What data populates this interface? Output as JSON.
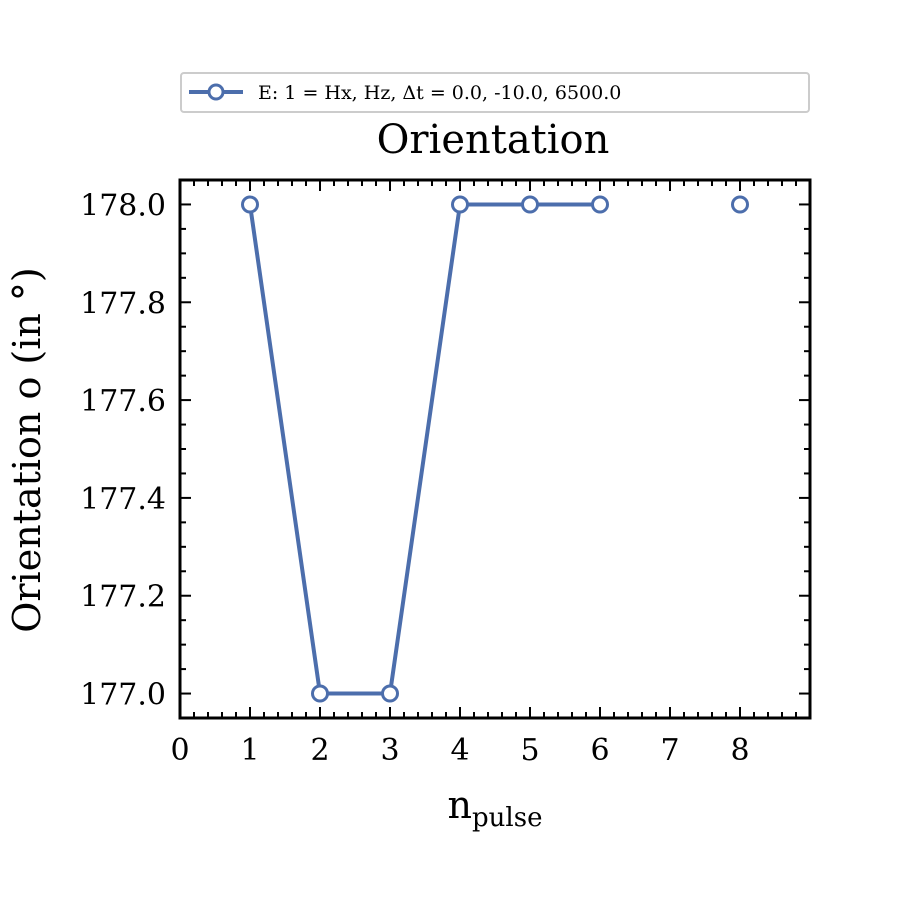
{
  "chart_data": {
    "type": "line",
    "title": "Orientation",
    "xlabel": "n",
    "xlabel_sub": "pulse",
    "ylabel": "Orientation o (in °)",
    "xlim": [
      0,
      9
    ],
    "ylim": [
      176.95,
      178.05
    ],
    "xticks": [
      0,
      1,
      2,
      3,
      4,
      5,
      6,
      7,
      8
    ],
    "yticks": [
      177.0,
      177.2,
      177.4,
      177.6,
      177.8,
      178.0
    ],
    "ytick_labels": [
      "177.0",
      "177.2",
      "177.4",
      "177.6",
      "177.8",
      "178.0"
    ],
    "grid": false,
    "legend_position": "top-center",
    "series": [
      {
        "name": "E: 1 = Hx, Hz, Δt =  0.0, -10.0, 6500.0",
        "color": "#4c6eac",
        "marker": "open-circle",
        "x": [
          1,
          2,
          3,
          4,
          5,
          6,
          8
        ],
        "y": [
          178.0,
          177.0,
          177.0,
          178.0,
          178.0,
          178.0,
          178.0
        ],
        "connected": [
          true,
          true,
          true,
          true,
          true,
          true,
          false
        ]
      }
    ]
  }
}
